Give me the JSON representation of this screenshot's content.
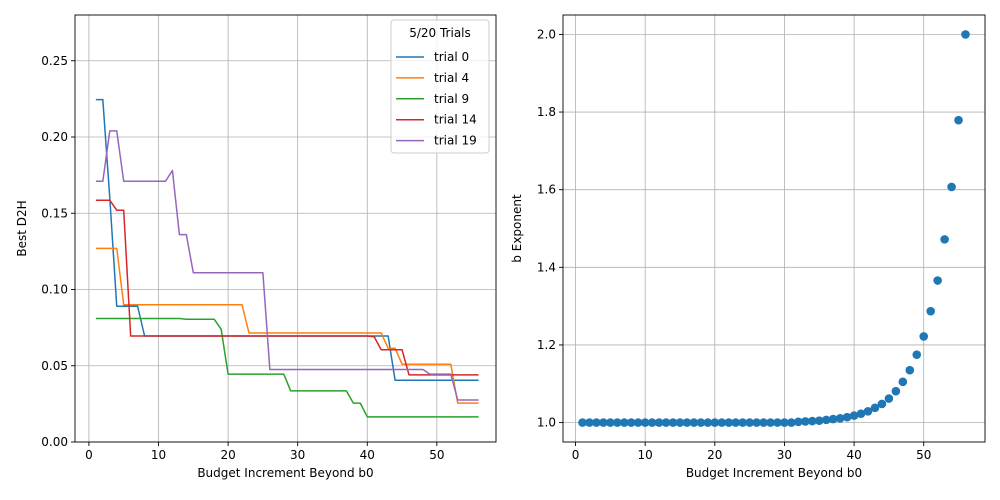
{
  "chart_data": [
    {
      "type": "line",
      "xlabel": "Budget Increment Beyond b0",
      "ylabel": "Best D2H",
      "xlim": [
        -2,
        58.5
      ],
      "ylim": [
        0,
        0.28
      ],
      "xticks": [
        0,
        10,
        20,
        30,
        40,
        50
      ],
      "yticks": [
        0.0,
        0.05,
        0.1,
        0.15,
        0.2,
        0.25
      ],
      "ytick_labels": [
        "0.00",
        "0.05",
        "0.10",
        "0.15",
        "0.20",
        "0.25"
      ],
      "grid": true,
      "legend": {
        "title": "5/20 Trials",
        "placement": "top-right"
      },
      "series": [
        {
          "name": "trial 0",
          "color": "#1f77b4",
          "points": [
            [
              1,
              0.2245
            ],
            [
              2,
              0.2245
            ],
            [
              3,
              0.16
            ],
            [
              4,
              0.089
            ],
            [
              7,
              0.089
            ],
            [
              8,
              0.0695
            ],
            [
              43,
              0.0695
            ],
            [
              44,
              0.0405
            ],
            [
              56,
              0.0405
            ]
          ]
        },
        {
          "name": "trial 4",
          "color": "#ff7f0e",
          "points": [
            [
              1,
              0.127
            ],
            [
              2,
              0.127
            ],
            [
              4,
              0.127
            ],
            [
              5,
              0.09
            ],
            [
              22,
              0.09
            ],
            [
              23,
              0.0715
            ],
            [
              42,
              0.0715
            ],
            [
              43,
              0.0615
            ],
            [
              44,
              0.0615
            ],
            [
              45,
              0.051
            ],
            [
              52,
              0.051
            ],
            [
              53,
              0.0255
            ],
            [
              56,
              0.0255
            ]
          ]
        },
        {
          "name": "trial 9",
          "color": "#2ca02c",
          "points": [
            [
              1,
              0.081
            ],
            [
              13,
              0.081
            ],
            [
              14,
              0.0805
            ],
            [
              18,
              0.0805
            ],
            [
              19,
              0.074
            ],
            [
              20,
              0.0445
            ],
            [
              28,
              0.0445
            ],
            [
              29,
              0.0335
            ],
            [
              37,
              0.0335
            ],
            [
              38,
              0.0255
            ],
            [
              39,
              0.0255
            ],
            [
              40,
              0.0165
            ],
            [
              56,
              0.0165
            ]
          ]
        },
        {
          "name": "trial 14",
          "color": "#d62728",
          "points": [
            [
              1,
              0.1585
            ],
            [
              3,
              0.1585
            ],
            [
              4,
              0.152
            ],
            [
              5,
              0.152
            ],
            [
              6,
              0.0695
            ],
            [
              40,
              0.0695
            ],
            [
              41,
              0.069
            ],
            [
              42,
              0.0605
            ],
            [
              45,
              0.0605
            ],
            [
              46,
              0.044
            ],
            [
              56,
              0.044
            ]
          ]
        },
        {
          "name": "trial 19",
          "color": "#9467bd",
          "points": [
            [
              1,
              0.171
            ],
            [
              2,
              0.171
            ],
            [
              3,
              0.204
            ],
            [
              4,
              0.204
            ],
            [
              5,
              0.171
            ],
            [
              11,
              0.171
            ],
            [
              12,
              0.178
            ],
            [
              13,
              0.136
            ],
            [
              14,
              0.136
            ],
            [
              15,
              0.111
            ],
            [
              25,
              0.111
            ],
            [
              26,
              0.0475
            ],
            [
              47,
              0.0475
            ],
            [
              48,
              0.0475
            ],
            [
              49,
              0.0445
            ],
            [
              52,
              0.0445
            ],
            [
              53,
              0.0275
            ],
            [
              56,
              0.0275
            ]
          ]
        }
      ]
    },
    {
      "type": "scatter",
      "xlabel": "Budget Increment Beyond b0",
      "ylabel": "b Exponent",
      "xlim": [
        -1.8,
        58.8
      ],
      "ylim": [
        0.95,
        2.05
      ],
      "xticks": [
        0,
        10,
        20,
        30,
        40,
        50
      ],
      "yticks": [
        1.0,
        1.2,
        1.4,
        1.6,
        1.8,
        2.0
      ],
      "ytick_labels": [
        "1.0",
        "1.2",
        "1.4",
        "1.6",
        "1.8",
        "2.0"
      ],
      "grid": true,
      "color": "#1f77b4",
      "x": [
        1,
        2,
        3,
        4,
        5,
        6,
        7,
        8,
        9,
        10,
        11,
        12,
        13,
        14,
        15,
        16,
        17,
        18,
        19,
        20,
        21,
        22,
        23,
        24,
        25,
        26,
        27,
        28,
        29,
        30,
        31,
        32,
        33,
        34,
        35,
        36,
        37,
        38,
        39,
        40,
        41,
        42,
        43,
        44,
        45,
        46,
        47,
        48,
        49,
        50,
        51,
        52,
        53,
        54,
        55,
        56
      ],
      "y": [
        1.0,
        1.0,
        1.0,
        1.0,
        1.0,
        1.0,
        1.0,
        1.0,
        1.0,
        1.0,
        1.0,
        1.0,
        1.0,
        1.0,
        1.0,
        1.0,
        1.0,
        1.0,
        1.0,
        1.0,
        1.0,
        1.0,
        1.0,
        1.0,
        1.0,
        1.0,
        1.0,
        1.0,
        1.0,
        1.0,
        1.0,
        1.002,
        1.003,
        1.004,
        1.005,
        1.007,
        1.009,
        1.011,
        1.014,
        1.018,
        1.023,
        1.029,
        1.038,
        1.048,
        1.062,
        1.081,
        1.105,
        1.135,
        1.175,
        1.222,
        1.287,
        1.366,
        1.472,
        1.607,
        1.779,
        2.0
      ]
    }
  ]
}
